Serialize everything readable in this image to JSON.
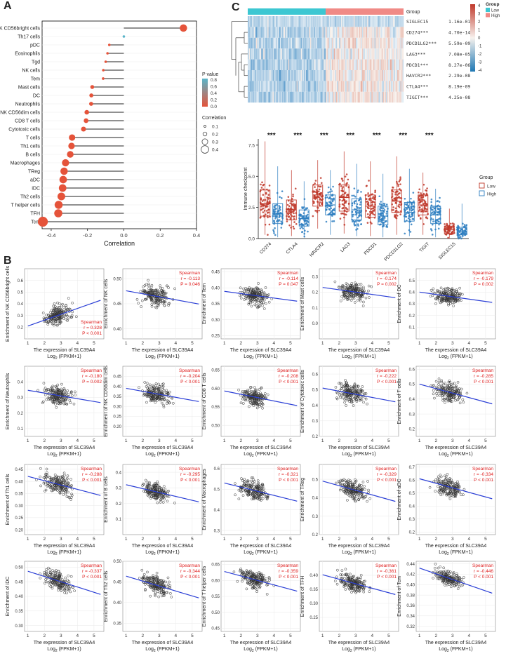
{
  "panel_labels": {
    "a": "A",
    "b": "B",
    "c": "C"
  },
  "chart_data": [
    {
      "id": "A",
      "type": "lollipop",
      "xlabel": "Correlation",
      "xlim": [
        -0.45,
        0.4
      ],
      "xticks": [
        "-0.4",
        "-0.2",
        "0.0",
        "0.2",
        "0.4"
      ],
      "xtick_values": [
        -0.4,
        -0.2,
        0.0,
        0.2,
        0.4
      ],
      "categories": [
        "NK CD56bright cells",
        "Th17 cells",
        "pDC",
        "Eosinophils",
        "Tgd",
        "NK cells",
        "Tem",
        "Mast cells",
        "DC",
        "Neutrophils",
        "NK CD56dim cells",
        "CD8 T cells",
        "Cytotoxic cells",
        "T cells",
        "Th1 cells",
        "B cells",
        "Macrophages",
        "TReg",
        "aDC",
        "iDC",
        "Th2 cells",
        "T helper cells",
        "TFH",
        "Tcm"
      ],
      "values": [
        0.328,
        0.0,
        -0.08,
        -0.09,
        -0.1,
        -0.113,
        -0.114,
        -0.174,
        -0.179,
        -0.18,
        -0.204,
        -0.208,
        -0.222,
        -0.285,
        -0.288,
        -0.295,
        -0.321,
        -0.329,
        -0.334,
        -0.337,
        -0.344,
        -0.359,
        -0.361,
        -0.446
      ],
      "pvalues": [
        0.0,
        0.9,
        0.2,
        0.15,
        0.1,
        0.046,
        0.047,
        0.002,
        0.002,
        0.002,
        0.001,
        0.001,
        0.001,
        0.001,
        0.001,
        0.001,
        0.001,
        0.001,
        0.001,
        0.001,
        0.001,
        0.001,
        0.001,
        0.001
      ],
      "legend_p_title": "P value",
      "legend_p_ticks": [
        "0.8",
        "0.6",
        "0.4",
        "0.2",
        "0.0"
      ],
      "legend_size_title": "Correlation",
      "legend_size_items": [
        "0.1",
        "0.2",
        "0.3",
        "0.4"
      ],
      "colors": {
        "high_p": "#5bb5c9",
        "low_p": "#e5533a"
      }
    },
    {
      "id": "C-heatmap",
      "type": "heatmap",
      "genes": [
        "SIGLEC15",
        "CD274***",
        "PDCD1LG2***",
        "LAG3***",
        "PDCD1***",
        "HAVCR2***",
        "CTLA4***",
        "TIGIT***"
      ],
      "pvalues": [
        "1.16e-01",
        "4.70e-14",
        "5.59e-09",
        "7.08e-05",
        "8.27e-06",
        "2.29e-08",
        "8.19e-09",
        "4.25e-08"
      ],
      "color_scale": [
        -4,
        4
      ],
      "color_ticks": [
        "4",
        "3",
        "2",
        "1",
        "0",
        "-1",
        "-2",
        "-3",
        "-4"
      ],
      "group_legend_title": "Group",
      "groups": [
        "Low",
        "High"
      ],
      "group_colors": [
        "#3cc7d2",
        "#f08a86"
      ],
      "annotation_label": "Group"
    },
    {
      "id": "C-box",
      "type": "boxplot",
      "ylabel": "Immune checkpoint",
      "ylim": [
        0,
        8
      ],
      "yticks": [
        "0.0",
        "2.5",
        "5.0",
        "7.5"
      ],
      "categories": [
        "CD274",
        "CTLA4",
        "HAVCR2",
        "LAG3",
        "PDCD1",
        "PDCD1LG2",
        "TIGIT",
        "SIGLEC15"
      ],
      "significance": [
        "***",
        "***",
        "***",
        "***",
        "***",
        "***",
        "***",
        ""
      ],
      "series": [
        {
          "name": "Low",
          "color": "#c0392b",
          "medians": [
            2.8,
            2.3,
            3.5,
            3.3,
            2.6,
            3.0,
            2.7,
            0.7
          ],
          "q1": [
            1.8,
            1.5,
            2.6,
            2.2,
            1.7,
            2.1,
            1.9,
            0.4
          ],
          "q3": [
            3.9,
            3.1,
            4.3,
            4.3,
            3.5,
            3.9,
            3.5,
            1.0
          ],
          "min": [
            0.3,
            0.2,
            0.8,
            0.4,
            0.2,
            0.3,
            0.3,
            0.0
          ],
          "max": [
            7.8,
            5.5,
            6.3,
            7.0,
            6.2,
            6.6,
            5.3,
            2.4
          ]
        },
        {
          "name": "High",
          "color": "#2f7fc1",
          "medians": [
            2.0,
            1.6,
            2.7,
            2.3,
            1.8,
            2.1,
            1.9,
            0.6
          ],
          "q1": [
            1.2,
            1.0,
            1.9,
            1.5,
            1.1,
            1.4,
            1.2,
            0.3
          ],
          "q3": [
            2.8,
            2.3,
            3.5,
            3.2,
            2.6,
            2.9,
            2.6,
            0.9
          ],
          "min": [
            0.1,
            0.1,
            0.3,
            0.2,
            0.1,
            0.2,
            0.1,
            0.0
          ],
          "max": [
            5.8,
            4.6,
            5.5,
            6.0,
            5.2,
            5.6,
            4.0,
            2.8
          ]
        }
      ],
      "legend_title": "Group",
      "legend_items": [
        "Low",
        "High"
      ]
    },
    {
      "id": "B",
      "type": "scatter-grid",
      "xlabel_line1": "The expression of SLC39A4",
      "xlabel_line2_prefix": "Log",
      "xlabel_line2_sub": "2",
      "xlabel_line2_suffix": " (FPKM+1)",
      "xticks": [
        "1",
        "2",
        "3",
        "4",
        "5"
      ],
      "xlim": [
        0.8,
        5.6
      ],
      "stat_title": "Spearman",
      "panels": [
        {
          "cell": "NK CD56bright cells",
          "ylabel": "Enrichment of NK CD56bright cells",
          "r": "r = 0.328",
          "p": "P < 0.001",
          "ylim": [
            0.1,
            0.7
          ],
          "yticks": [
            "0.2",
            "0.3",
            "0.4",
            "0.5",
            "0.6"
          ],
          "slope": 0.05,
          "intercept": 0.31,
          "spread": 0.08,
          "legend_pos": "bottom-right"
        },
        {
          "cell": "NK cells",
          "ylabel": "Enrichment of NK cells",
          "r": "r = -0.113",
          "p": "P = 0.046",
          "ylim": [
            0.38,
            0.52
          ],
          "yticks": [
            "0.40",
            "0.45",
            "0.50"
          ],
          "slope": -0.006,
          "intercept": 0.464,
          "spread": 0.022,
          "legend_pos": "top-right"
        },
        {
          "cell": "Tem",
          "ylabel": "Enrichment of Tem",
          "r": "r = -0.114",
          "p": "P = 0.047",
          "ylim": [
            0.24,
            0.46
          ],
          "yticks": [
            "0.25",
            "0.30",
            "0.35",
            "0.40",
            "0.45"
          ],
          "slope": -0.007,
          "intercept": 0.375,
          "spread": 0.03,
          "legend_pos": "top-right"
        },
        {
          "cell": "Mast cells",
          "ylabel": "Enrichment of Mast cells",
          "r": "r = -0.174",
          "p": "P = 0.002",
          "ylim": [
            -0.1,
            0.35
          ],
          "yticks": [
            "0.0",
            "0.1",
            "0.2",
            "0.3"
          ],
          "slope": -0.015,
          "intercept": 0.2,
          "spread": 0.06,
          "legend_pos": "top-right"
        },
        {
          "cell": "DC",
          "ylabel": "Enrichment of DC",
          "r": "r = -0.179",
          "p": "P = 0.002",
          "ylim": [
            0.0,
            0.6
          ],
          "yticks": [
            "0.1",
            "0.2",
            "0.3",
            "0.4",
            "0.5"
          ],
          "slope": -0.02,
          "intercept": 0.36,
          "spread": 0.07,
          "legend_pos": "top-right"
        },
        {
          "cell": "Neutrophils",
          "ylabel": "Enrichment of Neutrophils",
          "r": "r = -0.180",
          "p": "P = 0.002",
          "ylim": [
            0.05,
            0.5
          ],
          "yticks": [
            "0.1",
            "0.2",
            "0.3",
            "0.4"
          ],
          "slope": -0.018,
          "intercept": 0.31,
          "spread": 0.06,
          "legend_pos": "top-right"
        },
        {
          "cell": "NK CD56dim cells",
          "ylabel": "Enrichment of NK CD56dim cells",
          "r": "r = -0.204",
          "p": "P < 0.001",
          "ylim": [
            0.15,
            0.5
          ],
          "yticks": [
            "0.20",
            "0.25",
            "0.30",
            "0.35",
            "0.40",
            "0.45"
          ],
          "slope": -0.015,
          "intercept": 0.36,
          "spread": 0.045,
          "legend_pos": "top-right"
        },
        {
          "cell": "CD8 T cells",
          "ylabel": "Enrichment of CD8 T cells",
          "r": "r = -0.208",
          "p": "P < 0.001",
          "ylim": [
            0.47,
            0.66
          ],
          "yticks": [
            "0.50",
            "0.55",
            "0.60",
            "0.65"
          ],
          "slope": -0.009,
          "intercept": 0.575,
          "spread": 0.024,
          "legend_pos": "top-right"
        },
        {
          "cell": "Cytotoxic cells",
          "ylabel": "Enrichment of Cytotoxic cells",
          "r": "r = -0.222",
          "p": "P < 0.001",
          "ylim": [
            0.2,
            0.65
          ],
          "yticks": [
            "0.2",
            "0.3",
            "0.4",
            "0.5",
            "0.6"
          ],
          "slope": -0.02,
          "intercept": 0.47,
          "spread": 0.06,
          "legend_pos": "top-right"
        },
        {
          "cell": "T cells",
          "ylabel": "Enrichment of T cells",
          "r": "r = -0.285",
          "p": "P < 0.001",
          "ylim": [
            0.15,
            0.62
          ],
          "yticks": [
            "0.2",
            "0.3",
            "0.4",
            "0.5",
            "0.6"
          ],
          "slope": -0.03,
          "intercept": 0.44,
          "spread": 0.06,
          "legend_pos": "top-right"
        },
        {
          "cell": "Th1 cells",
          "ylabel": "Enrichment of Th1 cells",
          "r": "r = -0.288",
          "p": "P < 0.001",
          "ylim": [
            0.18,
            0.47
          ],
          "yticks": [
            "0.20",
            "0.25",
            "0.30",
            "0.35",
            "0.40",
            "0.45"
          ],
          "slope": -0.018,
          "intercept": 0.385,
          "spread": 0.04,
          "legend_pos": "top-right"
        },
        {
          "cell": "B cells",
          "ylabel": "Enrichment of B cells",
          "r": "r = -0.295",
          "p": "P < 0.001",
          "ylim": [
            0.0,
            0.45
          ],
          "yticks": [
            "0.1",
            "0.2",
            "0.3",
            "0.4"
          ],
          "slope": -0.025,
          "intercept": 0.27,
          "spread": 0.06,
          "legend_pos": "top-right"
        },
        {
          "cell": "Macrophages",
          "ylabel": "Enrichment of Macrophages",
          "r": "r = -0.321",
          "p": "P < 0.001",
          "ylim": [
            0.28,
            0.62
          ],
          "yticks": [
            "0.3",
            "0.4",
            "0.5",
            "0.6"
          ],
          "slope": -0.02,
          "intercept": 0.49,
          "spread": 0.045,
          "legend_pos": "top-right"
        },
        {
          "cell": "TReg",
          "ylabel": "Enrichment of TReg",
          "r": "r = -0.329",
          "p": "P < 0.001",
          "ylim": [
            0.2,
            0.58
          ],
          "yticks": [
            "0.2",
            "0.3",
            "0.4",
            "0.5"
          ],
          "slope": -0.025,
          "intercept": 0.44,
          "spread": 0.05,
          "legend_pos": "top-right"
        },
        {
          "cell": "aDC",
          "ylabel": "Enrichment of aDC",
          "r": "r = -0.334",
          "p": "P < 0.001",
          "ylim": [
            0.18,
            0.72
          ],
          "yticks": [
            "0.2",
            "0.3",
            "0.4",
            "0.5",
            "0.6",
            "0.7"
          ],
          "slope": -0.035,
          "intercept": 0.54,
          "spread": 0.07,
          "legend_pos": "top-right"
        },
        {
          "cell": "iDC",
          "ylabel": "Enrichment of iDC",
          "r": "r = -0.337",
          "p": "P < 0.001",
          "ylim": [
            0.28,
            0.52
          ],
          "yticks": [
            "0.30",
            "0.35",
            "0.40",
            "0.45",
            "0.50"
          ],
          "slope": -0.018,
          "intercept": 0.45,
          "spread": 0.03,
          "legend_pos": "top-right"
        },
        {
          "cell": "Th2 cells",
          "ylabel": "Enrichment of Th2 cells",
          "r": "r = -0.344",
          "p": "P < 0.001",
          "ylim": [
            0.33,
            0.5
          ],
          "yticks": [
            "0.35",
            "0.40",
            "0.45",
            "0.50"
          ],
          "slope": -0.012,
          "intercept": 0.44,
          "spread": 0.022,
          "legend_pos": "top-right"
        },
        {
          "cell": "T helper cells",
          "ylabel": "Enrichment of T helper cells",
          "r": "r = -0.359",
          "p": "P < 0.001",
          "ylim": [
            0.44,
            0.66
          ],
          "yticks": [
            "0.45",
            "0.50",
            "0.55",
            "0.60",
            "0.65"
          ],
          "slope": -0.014,
          "intercept": 0.6,
          "spread": 0.025,
          "legend_pos": "top-right"
        },
        {
          "cell": "TFH",
          "ylabel": "Enrichment of TFH",
          "r": "r = -0.361",
          "p": "P < 0.001",
          "ylim": [
            0.2,
            0.45
          ],
          "yticks": [
            "0.25",
            "0.30",
            "0.35",
            "0.40"
          ],
          "slope": -0.016,
          "intercept": 0.37,
          "spread": 0.03,
          "legend_pos": "top-right"
        },
        {
          "cell": "Tcm",
          "ylabel": "Enrichment of Tcm",
          "r": "r = -0.446",
          "p": "P < 0.001",
          "ylim": [
            0.31,
            0.445
          ],
          "yticks": [
            "0.32",
            "0.34",
            "0.36",
            "0.38",
            "0.40",
            "0.42",
            "0.44"
          ],
          "slope": -0.011,
          "intercept": 0.41,
          "spread": 0.015,
          "legend_pos": "top-right"
        }
      ]
    }
  ]
}
